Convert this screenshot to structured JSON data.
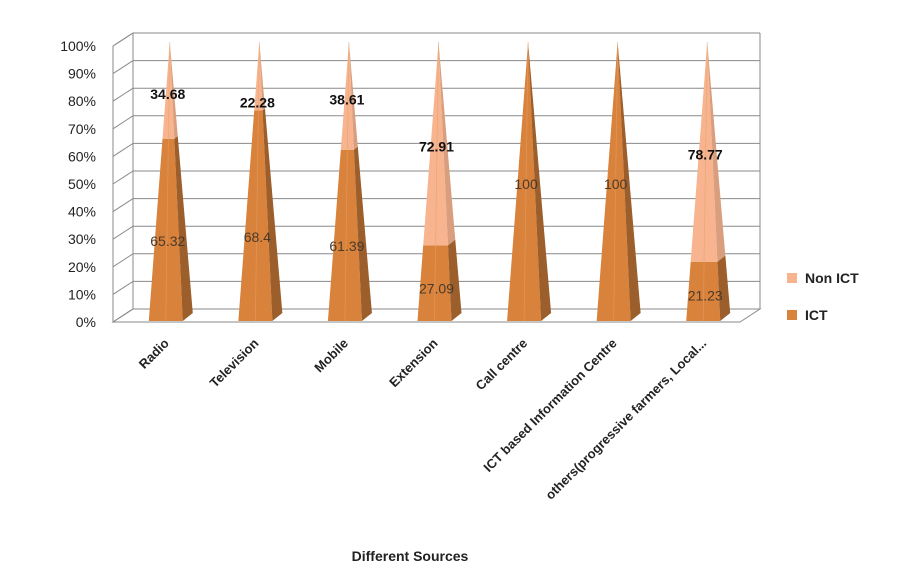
{
  "chart_data": {
    "type": "bar",
    "subtype": "3d-stacked-percent-pyramid",
    "title": "",
    "xlabel": "Different Sources",
    "ylabel": "",
    "ylim": [
      0,
      100
    ],
    "y_ticks": [
      "0%",
      "10%",
      "20%",
      "30%",
      "40%",
      "50%",
      "60%",
      "70%",
      "80%",
      "90%",
      "100%"
    ],
    "grid": true,
    "legend_position": "right",
    "categories": [
      "Radio",
      "Television",
      "Mobile",
      "Extension",
      "Call centre",
      "ICT based Information Centre",
      "others(progressive farmers, Local..."
    ],
    "series": [
      {
        "name": "ICT",
        "color": "#d9823b",
        "values": [
          65.32,
          68.4,
          61.39,
          27.09,
          100,
          100,
          21.23
        ],
        "labels": [
          "65.32",
          "68.4",
          "61.39",
          "27.09",
          "100",
          "100",
          "21.23"
        ]
      },
      {
        "name": "Non ICT",
        "color": "#f7b48e",
        "values": [
          34.68,
          22.28,
          38.61,
          72.91,
          0,
          0,
          78.77
        ],
        "labels": [
          "34.68",
          "22.28",
          "38.61",
          "72.91",
          "",
          "",
          "78.77"
        ]
      }
    ]
  }
}
